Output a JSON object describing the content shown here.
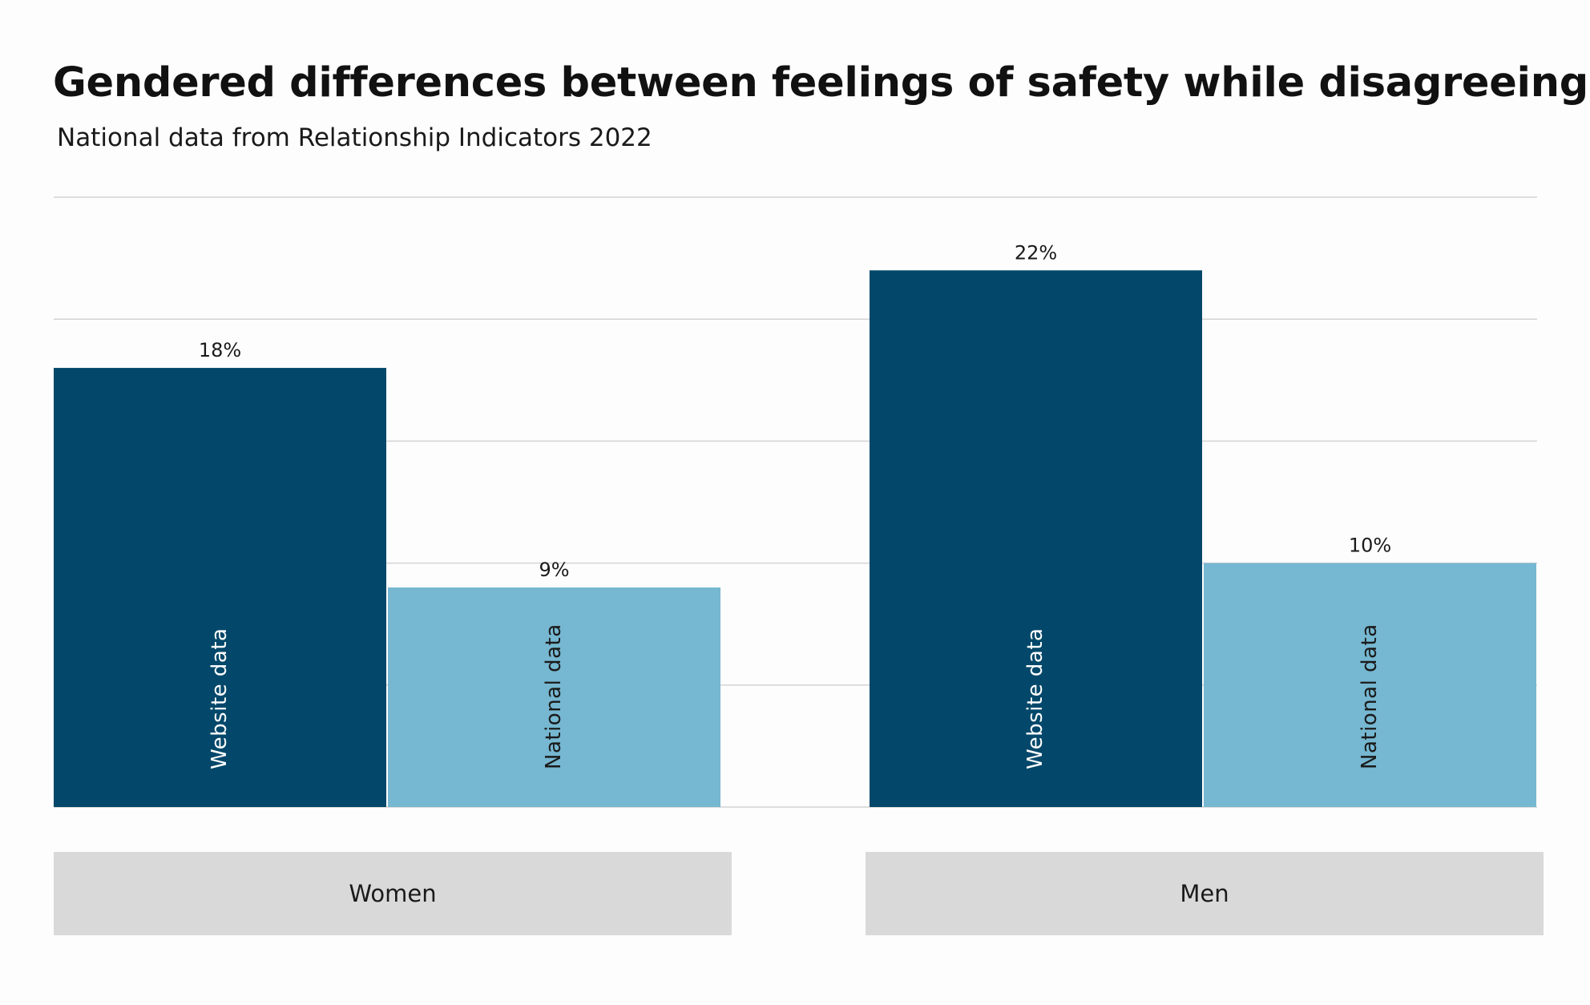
{
  "title": "Gendered differences between feelings of safety while disagreeing",
  "subtitle": "National data from Relationship Indicators 2022",
  "colors": {
    "website": "#03486a",
    "national": "#76b7d1",
    "gridline": "#d4d4d4",
    "category_box": "#d9d9d9"
  },
  "chart_data": {
    "type": "bar",
    "title": "Gendered differences between feelings of safety while disagreeing",
    "subtitle": "National data from Relationship Indicators 2022",
    "xlabel": "",
    "ylabel": "",
    "ylim": [
      0,
      25
    ],
    "grid": true,
    "y_gridlines": [
      5,
      10,
      15,
      20,
      25
    ],
    "legend": "none",
    "categories": [
      "Women",
      "Men"
    ],
    "series": [
      {
        "name": "Website data",
        "values": [
          18,
          22
        ],
        "labels": [
          "18%",
          "22%"
        ]
      },
      {
        "name": "National data",
        "values": [
          9,
          10
        ],
        "labels": [
          "9%",
          "10%"
        ]
      }
    ]
  }
}
